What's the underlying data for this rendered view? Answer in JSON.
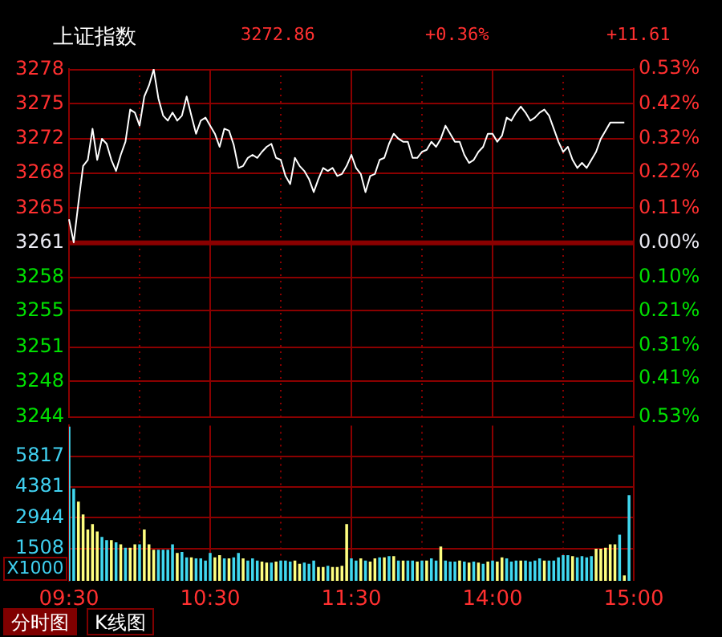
{
  "chart_data": [
    {
      "type": "line",
      "title": "上证指数",
      "annotations": [
        "3272.86",
        "+0.36%",
        "+11.61",
        "分时图",
        "K线图"
      ],
      "categories": [
        null,
        null,
        null,
        null,
        null,
        null,
        null,
        null,
        null,
        null,
        null,
        null,
        null,
        null,
        null,
        null,
        null,
        null,
        null,
        null,
        null,
        null,
        null,
        null,
        null,
        null,
        null,
        null,
        null,
        null,
        null,
        null,
        null,
        null,
        null,
        null,
        null,
        null,
        null,
        null,
        null,
        null,
        null,
        null,
        null,
        null,
        null,
        null,
        null,
        null,
        null,
        null,
        null,
        null,
        null,
        null,
        null,
        null,
        null,
        null,
        null,
        null,
        null,
        null,
        null,
        null,
        null,
        null,
        null,
        null,
        null,
        null,
        null,
        null,
        null,
        null,
        null,
        null,
        null,
        null,
        null,
        null,
        null,
        null,
        null,
        null,
        null,
        null,
        null,
        null,
        null,
        null,
        null,
        null,
        null,
        null,
        null,
        null,
        null,
        null,
        null,
        null,
        null,
        null,
        null,
        null,
        null,
        null,
        null,
        null,
        null,
        null,
        null,
        null,
        null,
        null,
        null,
        null,
        null,
        null,
        null
      ],
      "series": [
        {
          "color": "#ffffff",
          "values": [
            3263.6,
            3261.3,
            3265.2,
            3268.9,
            3269.5,
            3272.6,
            3269.5,
            3271.6,
            3271.1,
            3269.5,
            3268.4,
            3270.0,
            3271.3,
            3274.5,
            3274.2,
            3272.9,
            3275.8,
            3276.9,
            3278.5,
            3275.6,
            3273.9,
            3273.4,
            3274.2,
            3273.4,
            3273.9,
            3275.8,
            3273.9,
            3272.1,
            3273.4,
            3273.7,
            3272.9,
            3272.1,
            3270.8,
            3272.6,
            3272.4,
            3271.0,
            3268.7,
            3268.9,
            3269.7,
            3270.0,
            3269.7,
            3270.3,
            3270.8,
            3271.1,
            3269.7,
            3269.5,
            3267.9,
            3267.1,
            3269.7,
            3268.9,
            3268.4,
            3267.6,
            3266.3,
            3267.6,
            3268.7,
            3268.4,
            3268.7,
            3267.9,
            3268.1,
            3268.9,
            3270.0,
            3268.7,
            3268.1,
            3266.3,
            3267.9,
            3268.1,
            3269.5,
            3269.7,
            3271.1,
            3272.1,
            3271.6,
            3271.3,
            3271.3,
            3269.7,
            3269.7,
            3270.3,
            3270.5,
            3271.3,
            3270.8,
            3271.6,
            3272.9,
            3272.1,
            3271.3,
            3271.3,
            3270.0,
            3269.2,
            3269.5,
            3270.3,
            3270.8,
            3272.1,
            3272.1,
            3271.3,
            3271.9,
            3273.7,
            3273.4,
            3274.2,
            3274.8,
            3274.2,
            3273.4,
            3273.7,
            3274.2,
            3274.5,
            3273.9,
            3272.6,
            3271.3,
            3270.3,
            3270.8,
            3269.5,
            3268.7,
            3269.2,
            3268.7,
            3269.5,
            3270.3,
            3271.6,
            3272.4,
            3273.2,
            3273.2,
            3273.2,
            3273.2,
            null,
            null
          ]
        }
      ],
      "ylim": [
        3243.97,
        3278.53
      ],
      "yticks": [
        {
          "value": 3243.97,
          "label": "3244"
        },
        {
          "value": 3247.5,
          "label": "3248"
        },
        {
          "value": 3250.88,
          "label": "3251"
        },
        {
          "value": 3254.5,
          "label": "3255"
        },
        {
          "value": 3257.79,
          "label": "3258"
        },
        {
          "value": 3261.25,
          "label": "3261"
        },
        {
          "value": 3264.71,
          "label": "3265"
        },
        {
          "value": 3268.16,
          "label": "3268"
        },
        {
          "value": 3271.62,
          "label": "3272"
        },
        {
          "value": 3275.08,
          "label": "3275"
        },
        {
          "value": 3278.49,
          "label": "3278"
        }
      ],
      "y2lim": [
        -0.53,
        0.53
      ],
      "y2ticks": [
        {
          "value": -0.53,
          "label": "0.53%"
        },
        {
          "value": -0.414,
          "label": "0.41%"
        },
        {
          "value": -0.314,
          "label": "0.31%"
        },
        {
          "value": -0.208,
          "label": "0.21%"
        },
        {
          "value": -0.104,
          "label": "0.10%"
        },
        {
          "value": 0,
          "label": "0.00%"
        },
        {
          "value": 0.106,
          "label": "0.11%"
        },
        {
          "value": 0.216,
          "label": "0.22%"
        },
        {
          "value": 0.318,
          "label": "0.32%"
        },
        {
          "value": 0.424,
          "label": "0.42%"
        },
        {
          "value": 0.53,
          "label": "0.53%"
        }
      ],
      "ref_lines": [
        {
          "axis": "y",
          "value": 3261.25
        }
      ],
      "grid": true,
      "tick_labels": "y",
      "marker": "none"
    },
    {
      "type": "bar",
      "ylabel": "X1000",
      "categories": [
        "09:30",
        null,
        null,
        null,
        null,
        null,
        null,
        null,
        null,
        null,
        null,
        null,
        null,
        null,
        null,
        null,
        null,
        null,
        null,
        null,
        null,
        null,
        null,
        null,
        null,
        null,
        null,
        null,
        null,
        null,
        "10:30",
        null,
        null,
        null,
        null,
        null,
        null,
        null,
        null,
        null,
        null,
        null,
        null,
        null,
        null,
        null,
        null,
        null,
        null,
        null,
        null,
        null,
        null,
        null,
        null,
        null,
        null,
        null,
        null,
        null,
        "11:30",
        null,
        null,
        null,
        null,
        null,
        null,
        null,
        null,
        null,
        null,
        null,
        null,
        null,
        null,
        null,
        null,
        null,
        null,
        null,
        null,
        null,
        null,
        null,
        null,
        null,
        null,
        null,
        null,
        null,
        "14:00",
        null,
        null,
        null,
        null,
        null,
        null,
        null,
        null,
        null,
        null,
        null,
        null,
        null,
        null,
        null,
        null,
        null,
        null,
        null,
        null,
        null,
        null,
        null,
        null,
        null,
        null,
        null,
        null,
        null,
        "15:00"
      ],
      "values": [
        7200,
        4300,
        3700,
        3100,
        2400,
        2650,
        2300,
        2050,
        1900,
        1900,
        1800,
        1700,
        1550,
        1550,
        1700,
        1700,
        2400,
        1700,
        1450,
        1450,
        1450,
        1450,
        1700,
        1300,
        1350,
        1100,
        1100,
        1050,
        1050,
        950,
        1300,
        1100,
        1200,
        1050,
        1050,
        1100,
        1300,
        1050,
        950,
        1050,
        950,
        900,
        850,
        850,
        900,
        950,
        950,
        900,
        950,
        800,
        850,
        800,
        950,
        650,
        650,
        700,
        650,
        650,
        700,
        2650,
        1050,
        950,
        1050,
        950,
        900,
        1050,
        1100,
        1100,
        1150,
        1150,
        950,
        950,
        950,
        950,
        900,
        950,
        950,
        1050,
        950,
        1600,
        950,
        900,
        900,
        950,
        900,
        850,
        900,
        850,
        800,
        900,
        950,
        900,
        1100,
        1050,
        900,
        950,
        950,
        950,
        900,
        950,
        1050,
        950,
        950,
        950,
        1100,
        1200,
        1200,
        1150,
        1100,
        1150,
        1100,
        1150,
        1500,
        1500,
        1550,
        1700,
        1700,
        2150,
        250,
        4000,
        null
      ],
      "colors": [
        "#40d8f0",
        "#40d8f0",
        "#ffff80",
        "#ffff80",
        "#ffff80",
        "#ffff80",
        "#ffff80",
        "#40d8f0",
        "#40d8f0",
        "#ffff80",
        "#40d8f0",
        "#ffff80",
        "#40d8f0",
        "#ffff80",
        "#ffff80",
        "#40d8f0",
        "#ffff80",
        "#ffff80",
        "#ffff80",
        "#40d8f0",
        "#40d8f0",
        "#40d8f0",
        "#40d8f0",
        "#ffff80",
        "#40d8f0",
        "#40d8f0",
        "#ffff80",
        "#40d8f0",
        "#40d8f0",
        "#40d8f0",
        "#40d8f0",
        "#ffff80",
        "#ffff80",
        "#40d8f0",
        "#ffff80",
        "#40d8f0",
        "#40d8f0",
        "#ffff80",
        "#40d8f0",
        "#40d8f0",
        "#40d8f0",
        "#ffff80",
        "#ffff80",
        "#40d8f0",
        "#ffff80",
        "#40d8f0",
        "#40d8f0",
        "#40d8f0",
        "#ffff80",
        "#ffff80",
        "#40d8f0",
        "#40d8f0",
        "#40d8f0",
        "#ffff80",
        "#ffff80",
        "#40d8f0",
        "#ffff80",
        "#ffff80",
        "#ffff80",
        "#ffff80",
        "#40d8f0",
        "#40d8f0",
        "#ffff80",
        "#40d8f0",
        "#ffff80",
        "#ffff80",
        "#40d8f0",
        "#ffff80",
        "#40d8f0",
        "#ffff80",
        "#40d8f0",
        "#ffff80",
        "#40d8f0",
        "#40d8f0",
        "#ffff80",
        "#40d8f0",
        "#ffff80",
        "#40d8f0",
        "#40d8f0",
        "#ffff80",
        "#40d8f0",
        "#40d8f0",
        "#40d8f0",
        "#ffff80",
        "#40d8f0",
        "#ffff80",
        "#40d8f0",
        "#ffff80",
        "#40d8f0",
        "#ffff80",
        "#40d8f0",
        "#ffff80",
        "#ffff80",
        "#40d8f0",
        "#40d8f0",
        "#40d8f0",
        "#ffff80",
        "#40d8f0",
        "#40d8f0",
        "#40d8f0",
        "#40d8f0",
        "#ffff80",
        "#40d8f0",
        "#40d8f0",
        "#40d8f0",
        "#40d8f0",
        "#40d8f0",
        "#ffff80",
        "#40d8f0",
        "#40d8f0",
        "#40d8f0",
        "#40d8f0",
        "#ffff80",
        "#ffff80",
        "#ffff80",
        "#ffff80",
        "#ffff80",
        "#40d8f0",
        "#ffff80",
        "#40d8f0",
        "#40d8f0"
      ],
      "ylim": [
        0,
        7253
      ],
      "yticks": [
        1508,
        2944,
        4381,
        5817
      ],
      "grid": true
    }
  ]
}
